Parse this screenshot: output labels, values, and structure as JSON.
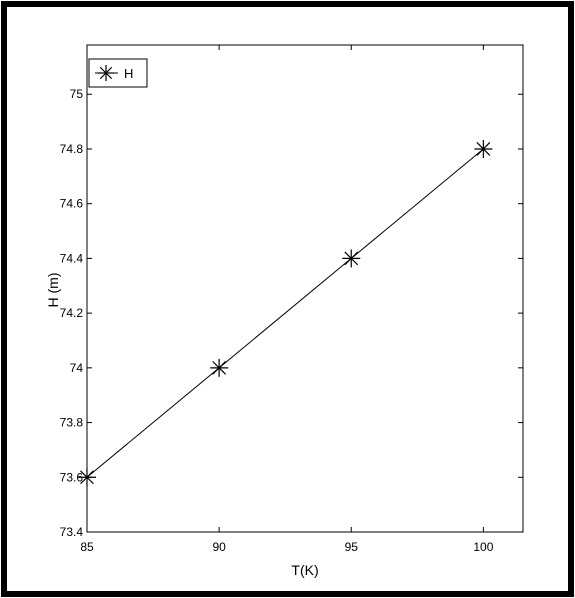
{
  "chart_data": {
    "type": "line",
    "title": "",
    "xlabel": "T(K)",
    "ylabel": "H (m)",
    "xlim": [
      85,
      101.5
    ],
    "ylim": [
      73.4,
      75.18
    ],
    "xticks": [
      85,
      90,
      95,
      100
    ],
    "xtick_labels": [
      "85",
      "90",
      "95",
      "100"
    ],
    "yticks": [
      73.4,
      73.6,
      73.8,
      74,
      74.2,
      74.4,
      74.6,
      74.8,
      75
    ],
    "ytick_labels": [
      "73.4",
      "73.6",
      "73.8",
      "74",
      "74.2",
      "74.4",
      "74.6",
      "74.8",
      "75"
    ],
    "grid": false,
    "legend_position": "top-left",
    "series": [
      {
        "name": "H",
        "marker": "asterisk",
        "color": "#000000",
        "x": [
          85,
          90,
          95,
          100
        ],
        "y": [
          73.6,
          74.0,
          74.4,
          74.8
        ]
      }
    ]
  }
}
